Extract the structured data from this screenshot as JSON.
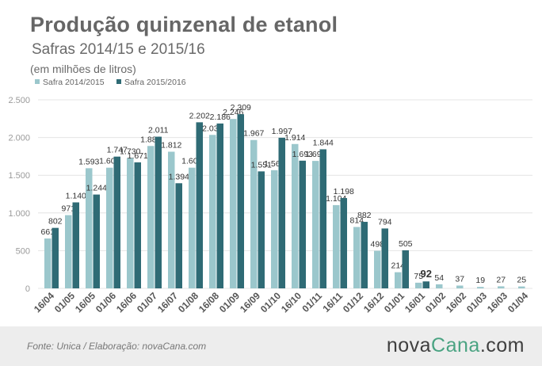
{
  "title": "Produção quinzenal de etanol",
  "subtitle": "Safras 2014/15 e 2015/16",
  "unit_label": "(em milhões de litros)",
  "footer": {
    "source": "Fonte: Unica / Elaboração: novaCana.com",
    "brand_prefix": "nova",
    "brand_accent": "Cana",
    "brand_suffix": ".com"
  },
  "colors": {
    "safra_2014": "#9bc7cc",
    "safra_2015": "#2f6b75",
    "axis_text": "#9a9a9a",
    "grid": "#e4e4e4",
    "brand_accent": "#4aa382"
  },
  "chart_data": {
    "type": "bar",
    "categories": [
      "16/04",
      "01/05",
      "16/05",
      "01/06",
      "16/06",
      "01/07",
      "16/07",
      "01/08",
      "16/08",
      "01/09",
      "16/09",
      "01/10",
      "16/10",
      "01/11",
      "16/11",
      "01/12",
      "16/12",
      "01/01",
      "16/01",
      "01/02",
      "16/02",
      "01/03",
      "16/03",
      "01/04"
    ],
    "series": [
      {
        "name": "Safra 2014/2015",
        "values": [
          661,
          971,
          1593,
          1600,
          1730,
          1888,
          1812,
          1600,
          2035,
          2246,
          1967,
          1567,
          1914,
          1690,
          1104,
          814,
          498,
          214,
          75,
          54,
          37,
          19,
          27,
          25
        ],
        "labels": [
          "661",
          "971",
          "1.593",
          "1.600",
          "1.730",
          "1.888",
          "1.812",
          "1.600",
          "2.035",
          "2.246",
          "1.967",
          "1.567",
          "1.914",
          "1.690",
          "1.104",
          "814",
          "498",
          "214",
          "75",
          "54",
          "37",
          "19",
          "27",
          "25"
        ]
      },
      {
        "name": "Safra 2015/2016",
        "values": [
          802,
          1140,
          1244,
          1747,
          1671,
          2011,
          1394,
          2202,
          2186,
          2309,
          1551,
          1997,
          1693,
          1844,
          1198,
          882,
          794,
          505,
          92,
          null,
          null,
          null,
          null,
          null
        ],
        "labels": [
          "802",
          "1.140",
          "1.244",
          "1.747",
          "1.671",
          "2.011",
          "1.394",
          "2.202",
          "2.186",
          "2.309",
          "1.551",
          "1.997",
          "1.693",
          "1.844",
          "1.198",
          "882",
          "794",
          "505",
          "92",
          "",
          "",
          "",
          "",
          ""
        ]
      }
    ],
    "ylim": [
      0,
      2500
    ],
    "yticks": [
      0,
      500,
      1000,
      1500,
      2000,
      2500
    ],
    "ytick_labels": [
      "0",
      "500",
      "1.000",
      "1.500",
      "2.000",
      "2.500"
    ],
    "legend_position": "top-left",
    "grid": true
  }
}
